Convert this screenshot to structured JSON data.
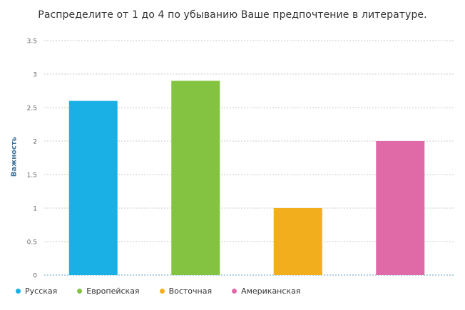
{
  "chart_data": {
    "type": "bar",
    "title": "Распределите от 1 до 4 по убыванию Ваше предпочтение в литературе.",
    "xlabel": "",
    "ylabel": "Важность",
    "categories": [
      "Русская",
      "Европейская",
      "Восточная",
      "Американская"
    ],
    "values": [
      2.6,
      2.9,
      1.0,
      2.0
    ],
    "colors": [
      "#1ab0e6",
      "#84c341",
      "#f2ae1c",
      "#e069a8"
    ],
    "ylim": [
      0,
      3.5
    ],
    "yticks": [
      0,
      0.5,
      1,
      1.5,
      2,
      2.5,
      3,
      3.5
    ],
    "ytick_labels": [
      "0",
      "0.5",
      "1",
      "1.5",
      "2",
      "2.5",
      "3",
      "3.5"
    ],
    "grid": true,
    "legend_position": "bottom-left"
  }
}
